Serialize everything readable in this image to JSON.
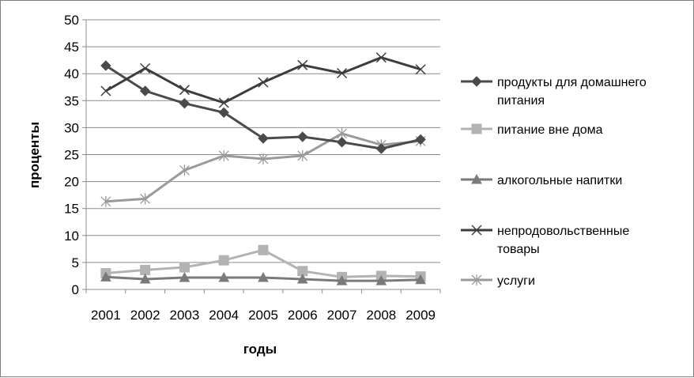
{
  "chart_data": {
    "type": "line",
    "title": "",
    "xlabel": "годы",
    "ylabel": "проценты",
    "ylim": [
      0,
      50
    ],
    "yticks": [
      0,
      5,
      10,
      15,
      20,
      25,
      30,
      35,
      40,
      45,
      50
    ],
    "grid": "horizontal",
    "legend": "right",
    "x": [
      "2001",
      "2002",
      "2003",
      "2004",
      "2005",
      "2006",
      "2007",
      "2008",
      "2009"
    ],
    "series": [
      {
        "name": "продукты для домашнего питания",
        "legend_lines": [
          "продукты для домашнего",
          "питания"
        ],
        "marker": "diamond",
        "color": "#4a4a4a",
        "values": [
          41.5,
          36.8,
          34.5,
          32.8,
          28.0,
          28.3,
          27.3,
          26.1,
          27.8
        ]
      },
      {
        "name": "питание вне дома",
        "legend_lines": [
          "питание вне дома"
        ],
        "marker": "square",
        "color": "#b3b3b3",
        "values": [
          3.0,
          3.6,
          4.1,
          5.4,
          7.3,
          3.4,
          2.3,
          2.5,
          2.4
        ]
      },
      {
        "name": "алкогольные напитки",
        "legend_lines": [
          "алкогольные напитки"
        ],
        "marker": "triangle",
        "color": "#7a7a7a",
        "values": [
          2.3,
          1.9,
          2.2,
          2.2,
          2.2,
          1.9,
          1.6,
          1.6,
          1.8
        ]
      },
      {
        "name": "непродовольственные товары",
        "legend_lines": [
          "непродовольственные",
          "товары"
        ],
        "marker": "x",
        "color": "#3d3d3d",
        "values": [
          36.8,
          41.0,
          37.0,
          34.6,
          38.4,
          41.6,
          40.1,
          43.0,
          40.8
        ]
      },
      {
        "name": "услуги",
        "legend_lines": [
          "услуги"
        ],
        "marker": "star",
        "color": "#9a9a9a",
        "values": [
          16.3,
          16.8,
          22.1,
          24.8,
          24.2,
          24.8,
          28.9,
          26.8,
          27.5
        ]
      }
    ]
  }
}
